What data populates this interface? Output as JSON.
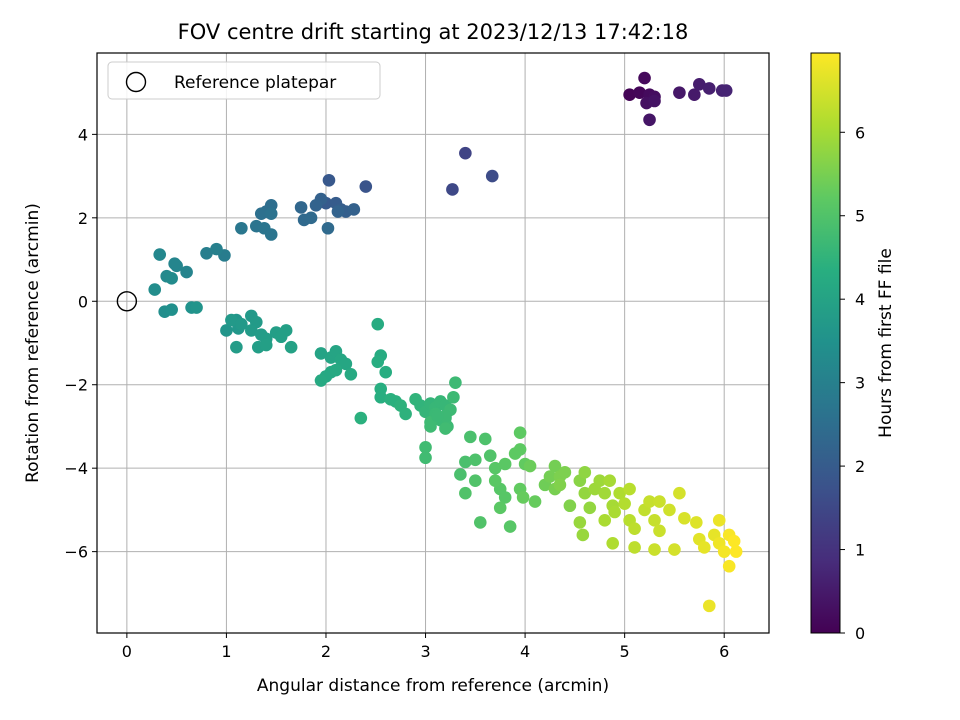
{
  "chart_data": {
    "type": "scatter",
    "title": "FOV centre drift starting at 2023/12/13 17:42:18",
    "xlabel": "Angular distance from reference (arcmin)",
    "ylabel": "Rotation from reference (arcmin)",
    "xlim": [
      -0.3,
      6.45
    ],
    "ylim": [
      -7.95,
      5.95
    ],
    "xticks": [
      0,
      1,
      2,
      3,
      4,
      5,
      6
    ],
    "yticks": [
      -6,
      -4,
      -2,
      0,
      2,
      4
    ],
    "grid": true,
    "legend": {
      "location": "upper-left",
      "entries": [
        "Reference platepar"
      ]
    },
    "reference_point": {
      "x": 0,
      "y": 0
    },
    "colorbar": {
      "label": "Hours from first FF file",
      "colormap": "viridis",
      "range": [
        0,
        6.95
      ],
      "ticks": [
        0,
        1,
        2,
        3,
        4,
        5,
        6
      ]
    },
    "points": [
      [
        5.05,
        4.95,
        0.05
      ],
      [
        5.15,
        5.0,
        0.1
      ],
      [
        5.2,
        5.35,
        0.15
      ],
      [
        5.25,
        4.95,
        0.2
      ],
      [
        5.3,
        4.9,
        0.25
      ],
      [
        5.22,
        4.75,
        0.3
      ],
      [
        5.3,
        4.8,
        0.35
      ],
      [
        5.25,
        4.35,
        0.4
      ],
      [
        5.55,
        5.0,
        0.45
      ],
      [
        5.7,
        4.95,
        0.5
      ],
      [
        5.75,
        5.2,
        0.55
      ],
      [
        5.85,
        5.1,
        0.6
      ],
      [
        5.98,
        5.05,
        0.65
      ],
      [
        6.02,
        5.05,
        0.7
      ],
      [
        3.4,
        3.55,
        1.4
      ],
      [
        3.27,
        2.68,
        1.5
      ],
      [
        3.67,
        3.0,
        1.6
      ],
      [
        2.4,
        2.75,
        1.8
      ],
      [
        2.03,
        2.9,
        1.9
      ],
      [
        2.0,
        2.35,
        1.95
      ],
      [
        2.1,
        2.35,
        2.0
      ],
      [
        2.15,
        2.2,
        2.05
      ],
      [
        2.2,
        2.15,
        2.1
      ],
      [
        2.28,
        2.2,
        2.15
      ],
      [
        1.95,
        2.45,
        2.15
      ],
      [
        1.9,
        2.3,
        2.2
      ],
      [
        2.12,
        2.15,
        2.2
      ],
      [
        1.75,
        2.25,
        2.3
      ],
      [
        1.78,
        1.95,
        2.35
      ],
      [
        1.85,
        2.0,
        2.4
      ],
      [
        2.02,
        1.75,
        2.4
      ],
      [
        1.45,
        2.3,
        2.5
      ],
      [
        1.4,
        2.15,
        2.5
      ],
      [
        1.35,
        2.1,
        2.55
      ],
      [
        1.45,
        2.1,
        2.6
      ],
      [
        1.3,
        1.8,
        2.65
      ],
      [
        1.38,
        1.75,
        2.7
      ],
      [
        1.45,
        1.6,
        2.7
      ],
      [
        1.15,
        1.75,
        2.75
      ],
      [
        0.98,
        1.1,
        2.9
      ],
      [
        0.8,
        1.15,
        2.95
      ],
      [
        0.9,
        1.25,
        3.0
      ],
      [
        0.6,
        0.7,
        3.1
      ],
      [
        0.5,
        0.85,
        3.15
      ],
      [
        0.48,
        0.9,
        3.15
      ],
      [
        0.33,
        1.12,
        3.2
      ],
      [
        0.4,
        0.6,
        3.25
      ],
      [
        0.45,
        0.55,
        3.3
      ],
      [
        0.28,
        0.28,
        3.35
      ],
      [
        0.38,
        -0.25,
        3.4
      ],
      [
        0.45,
        -0.2,
        3.45
      ],
      [
        0.65,
        -0.15,
        3.5
      ],
      [
        0.7,
        -0.15,
        3.55
      ],
      [
        1.0,
        -0.7,
        3.6
      ],
      [
        1.1,
        -0.45,
        3.6
      ],
      [
        1.12,
        -0.65,
        3.65
      ],
      [
        1.05,
        -0.45,
        3.7
      ],
      [
        1.15,
        -0.55,
        3.7
      ],
      [
        1.25,
        -0.35,
        3.72
      ],
      [
        1.3,
        -0.5,
        3.75
      ],
      [
        1.25,
        -0.7,
        3.78
      ],
      [
        1.35,
        -0.8,
        3.8
      ],
      [
        1.4,
        -0.9,
        3.82
      ],
      [
        1.5,
        -0.75,
        3.85
      ],
      [
        1.55,
        -0.85,
        3.88
      ],
      [
        1.6,
        -0.7,
        3.9
      ],
      [
        1.32,
        -1.1,
        3.85
      ],
      [
        1.1,
        -1.1,
        3.8
      ],
      [
        1.4,
        -1.05,
        3.9
      ],
      [
        1.65,
        -1.1,
        3.95
      ],
      [
        1.95,
        -1.25,
        4.0
      ],
      [
        2.05,
        -1.35,
        4.05
      ],
      [
        2.1,
        -1.2,
        4.05
      ],
      [
        2.15,
        -1.4,
        4.1
      ],
      [
        2.2,
        -1.5,
        4.1
      ],
      [
        2.05,
        -1.7,
        4.15
      ],
      [
        2.0,
        -1.8,
        4.15
      ],
      [
        1.95,
        -1.9,
        4.2
      ],
      [
        2.25,
        -1.75,
        4.2
      ],
      [
        2.1,
        -1.65,
        4.2
      ],
      [
        2.52,
        -0.55,
        4.25
      ],
      [
        2.55,
        -1.3,
        4.25
      ],
      [
        2.52,
        -1.45,
        4.3
      ],
      [
        2.6,
        -1.7,
        4.3
      ],
      [
        2.55,
        -2.1,
        4.35
      ],
      [
        2.55,
        -2.3,
        4.35
      ],
      [
        2.65,
        -2.35,
        4.4
      ],
      [
        2.7,
        -2.4,
        4.4
      ],
      [
        2.75,
        -2.5,
        4.45
      ],
      [
        2.8,
        -2.7,
        4.45
      ],
      [
        2.35,
        -2.8,
        4.4
      ],
      [
        2.9,
        -2.35,
        4.5
      ],
      [
        2.95,
        -2.5,
        4.5
      ],
      [
        3.0,
        -2.65,
        4.55
      ],
      [
        3.05,
        -2.45,
        4.55
      ],
      [
        3.1,
        -2.55,
        4.6
      ],
      [
        3.15,
        -2.4,
        4.6
      ],
      [
        3.2,
        -2.5,
        4.6
      ],
      [
        3.1,
        -2.7,
        4.65
      ],
      [
        3.15,
        -2.85,
        4.65
      ],
      [
        3.2,
        -2.8,
        4.65
      ],
      [
        3.22,
        -3.0,
        4.7
      ],
      [
        3.25,
        -2.6,
        4.7
      ],
      [
        3.28,
        -2.3,
        4.7
      ],
      [
        3.3,
        -1.95,
        4.7
      ],
      [
        3.05,
        -3.0,
        4.72
      ],
      [
        3.0,
        -3.5,
        4.75
      ],
      [
        3.0,
        -3.75,
        4.75
      ],
      [
        3.2,
        -3.05,
        4.75
      ],
      [
        3.05,
        -2.9,
        4.72
      ],
      [
        3.2,
        -2.75,
        4.68
      ],
      [
        3.12,
        -2.75,
        4.66
      ],
      [
        3.4,
        -3.85,
        4.9
      ],
      [
        3.45,
        -3.25,
        4.9
      ],
      [
        3.5,
        -3.8,
        4.95
      ],
      [
        3.6,
        -3.3,
        4.95
      ],
      [
        3.65,
        -3.7,
        5.0
      ],
      [
        3.35,
        -4.15,
        4.9
      ],
      [
        3.5,
        -4.3,
        5.0
      ],
      [
        3.4,
        -4.6,
        5.0
      ],
      [
        3.55,
        -5.3,
        5.0
      ],
      [
        3.7,
        -4.0,
        5.1
      ],
      [
        3.75,
        -4.5,
        5.1
      ],
      [
        3.8,
        -4.7,
        5.1
      ],
      [
        3.85,
        -5.4,
        5.1
      ],
      [
        3.75,
        -4.95,
        5.15
      ],
      [
        3.7,
        -4.3,
        5.15
      ],
      [
        3.8,
        -3.9,
        5.15
      ],
      [
        3.9,
        -3.65,
        5.2
      ],
      [
        3.95,
        -3.55,
        5.2
      ],
      [
        3.95,
        -3.15,
        5.2
      ],
      [
        4.0,
        -3.9,
        5.25
      ],
      [
        3.95,
        -4.5,
        5.25
      ],
      [
        3.98,
        -4.7,
        5.3
      ],
      [
        4.1,
        -4.8,
        5.3
      ],
      [
        4.05,
        -3.95,
        5.35
      ],
      [
        4.2,
        -4.4,
        5.4
      ],
      [
        4.25,
        -4.2,
        5.45
      ],
      [
        4.3,
        -3.95,
        5.45
      ],
      [
        4.3,
        -4.5,
        5.5
      ],
      [
        4.35,
        -4.2,
        5.55
      ],
      [
        4.4,
        -4.1,
        5.55
      ],
      [
        4.35,
        -4.4,
        5.6
      ],
      [
        4.45,
        -4.9,
        5.6
      ],
      [
        4.55,
        -4.3,
        5.7
      ],
      [
        4.6,
        -4.1,
        5.75
      ],
      [
        4.6,
        -4.6,
        5.8
      ],
      [
        4.65,
        -4.95,
        5.8
      ],
      [
        4.55,
        -5.3,
        5.85
      ],
      [
        4.58,
        -5.6,
        5.85
      ],
      [
        4.7,
        -4.5,
        5.9
      ],
      [
        4.75,
        -4.3,
        5.9
      ],
      [
        4.8,
        -4.6,
        5.95
      ],
      [
        4.85,
        -4.3,
        6.0
      ],
      [
        4.88,
        -4.9,
        6.0
      ],
      [
        4.9,
        -5.05,
        6.05
      ],
      [
        4.8,
        -5.25,
        6.05
      ],
      [
        4.88,
        -5.8,
        6.1
      ],
      [
        4.95,
        -4.6,
        6.1
      ],
      [
        5.0,
        -4.85,
        6.15
      ],
      [
        5.05,
        -5.25,
        6.2
      ],
      [
        5.1,
        -5.45,
        6.25
      ],
      [
        5.1,
        -5.9,
        6.25
      ],
      [
        5.05,
        -4.5,
        6.2
      ],
      [
        5.2,
        -5.0,
        6.3
      ],
      [
        5.25,
        -4.8,
        6.35
      ],
      [
        5.3,
        -5.25,
        6.35
      ],
      [
        5.35,
        -4.8,
        6.4
      ],
      [
        5.35,
        -5.5,
        6.4
      ],
      [
        5.3,
        -5.95,
        6.4
      ],
      [
        5.45,
        -5.0,
        6.45
      ],
      [
        5.5,
        -5.95,
        6.5
      ],
      [
        5.55,
        -4.6,
        6.5
      ],
      [
        5.6,
        -5.2,
        6.55
      ],
      [
        5.72,
        -5.3,
        6.6
      ],
      [
        5.75,
        -5.7,
        6.65
      ],
      [
        5.8,
        -5.9,
        6.7
      ],
      [
        5.85,
        -7.3,
        6.75
      ],
      [
        5.9,
        -5.6,
        6.7
      ],
      [
        5.95,
        -5.25,
        6.75
      ],
      [
        5.95,
        -5.8,
        6.8
      ],
      [
        6.0,
        -6.0,
        6.85
      ],
      [
        6.05,
        -5.6,
        6.9
      ],
      [
        6.05,
        -6.35,
        6.9
      ],
      [
        6.1,
        -5.75,
        6.95
      ],
      [
        6.12,
        -6.0,
        6.95
      ]
    ]
  }
}
